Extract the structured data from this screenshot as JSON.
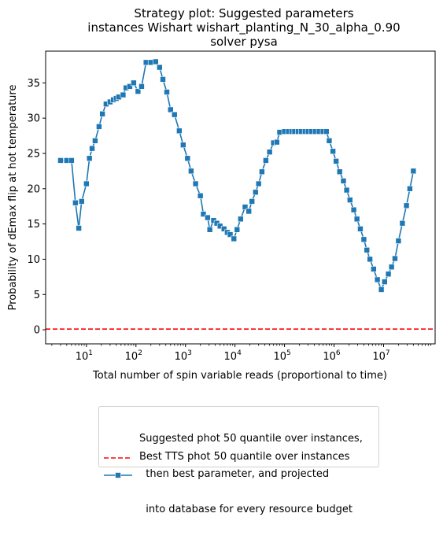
{
  "chart_data": {
    "type": "line",
    "title_lines": [
      "Strategy plot: Suggested parameters",
      "instances Wishart wishart_planting_N_30_alpha_0.90",
      "solver pysa"
    ],
    "xlabel": "Total number of spin variable reads (proportional to time)",
    "ylabel": "Probability of dEmax flip at hot temperature",
    "x_scale": "log",
    "xlim": [
      1.5,
      110000000
    ],
    "ylim": [
      -2,
      39.5
    ],
    "x_ticks": [
      {
        "value": 10,
        "base": "10",
        "exp": "1"
      },
      {
        "value": 100,
        "base": "10",
        "exp": "2"
      },
      {
        "value": 1000,
        "base": "10",
        "exp": "3"
      },
      {
        "value": 10000,
        "base": "10",
        "exp": "4"
      },
      {
        "value": 100000,
        "base": "10",
        "exp": "5"
      },
      {
        "value": 1000000,
        "base": "10",
        "exp": "6"
      },
      {
        "value": 10000000,
        "base": "10",
        "exp": "7"
      }
    ],
    "y_ticks": [
      0,
      5,
      10,
      15,
      20,
      25,
      30,
      35
    ],
    "grid": false,
    "legend_position": "bottom-center",
    "series": [
      {
        "name": "Suggested phot 50 quantile over instances,\n  then best parameter, and projected\n  into database for every resource budget",
        "color": "#1f77b4",
        "marker": "square",
        "points": [
          [
            3,
            24
          ],
          [
            4,
            24
          ],
          [
            5,
            24
          ],
          [
            6,
            18
          ],
          [
            7,
            14.4
          ],
          [
            8,
            18.2
          ],
          [
            10,
            20.7
          ],
          [
            11.5,
            24.3
          ],
          [
            13,
            25.7
          ],
          [
            15,
            26.8
          ],
          [
            18,
            28.8
          ],
          [
            21,
            30.6
          ],
          [
            25,
            32
          ],
          [
            30,
            32.3
          ],
          [
            35,
            32.6
          ],
          [
            40,
            32.8
          ],
          [
            45,
            33
          ],
          [
            55,
            33.3
          ],
          [
            63,
            34.3
          ],
          [
            75,
            34.5
          ],
          [
            90,
            35
          ],
          [
            110,
            33.8
          ],
          [
            130,
            34.5
          ],
          [
            160,
            37.9
          ],
          [
            200,
            37.9
          ],
          [
            250,
            38
          ],
          [
            300,
            37.2
          ],
          [
            350,
            35.5
          ],
          [
            420,
            33.7
          ],
          [
            500,
            31.2
          ],
          [
            600,
            30.5
          ],
          [
            750,
            28.2
          ],
          [
            900,
            26.2
          ],
          [
            1100,
            24.3
          ],
          [
            1300,
            22.5
          ],
          [
            1600,
            20.7
          ],
          [
            2000,
            19
          ],
          [
            2300,
            16.4
          ],
          [
            2800,
            15.9
          ],
          [
            3100,
            14.2
          ],
          [
            3700,
            15.5
          ],
          [
            4300,
            15.1
          ],
          [
            5000,
            14.7
          ],
          [
            6000,
            14.3
          ],
          [
            7000,
            13.8
          ],
          [
            8000,
            13.5
          ],
          [
            9500,
            12.9
          ],
          [
            11000,
            14.2
          ],
          [
            13000,
            15.7
          ],
          [
            16000,
            17.4
          ],
          [
            19000,
            16.8
          ],
          [
            22000,
            18.2
          ],
          [
            26000,
            19.5
          ],
          [
            30000,
            20.7
          ],
          [
            35000,
            22.4
          ],
          [
            42000,
            24
          ],
          [
            50000,
            25.2
          ],
          [
            60000,
            26.5
          ],
          [
            70000,
            26.6
          ],
          [
            80000,
            28
          ],
          [
            100000,
            28.1
          ],
          [
            120000,
            28.1
          ],
          [
            140000,
            28.1
          ],
          [
            160000,
            28.1
          ],
          [
            190000,
            28.1
          ],
          [
            220000,
            28.1
          ],
          [
            260000,
            28.1
          ],
          [
            300000,
            28.1
          ],
          [
            350000,
            28.1
          ],
          [
            420000,
            28.1
          ],
          [
            500000,
            28.1
          ],
          [
            600000,
            28.1
          ],
          [
            700000,
            28.1
          ],
          [
            800000,
            26.8
          ],
          [
            950000,
            25.3
          ],
          [
            1100000,
            23.9
          ],
          [
            1300000,
            22.4
          ],
          [
            1550000,
            21.1
          ],
          [
            1800000,
            19.8
          ],
          [
            2100000,
            18.4
          ],
          [
            2500000,
            17
          ],
          [
            2900000,
            15.7
          ],
          [
            3400000,
            14.3
          ],
          [
            4000000,
            12.8
          ],
          [
            4600000,
            11.3
          ],
          [
            5300000,
            10
          ],
          [
            6300000,
            8.6
          ],
          [
            7500000,
            7.1
          ],
          [
            9000000,
            5.7
          ],
          [
            10500000,
            6.8
          ],
          [
            12500000,
            7.9
          ],
          [
            14500000,
            8.9
          ],
          [
            17000000,
            10.1
          ],
          [
            20000000,
            12.6
          ],
          [
            24000000,
            15.1
          ],
          [
            29000000,
            17.6
          ],
          [
            34000000,
            20
          ],
          [
            40000000,
            22.5
          ]
        ]
      },
      {
        "name": "Best TTS phot 50 quantile over instances",
        "color": "#ff0000",
        "line_style": "dashed",
        "hline": 0.1
      }
    ]
  },
  "legend": {
    "entry_1_lines": [
      "Suggested phot 50 quantile over instances,",
      "  then best parameter, and projected",
      "  into database for every resource budget"
    ],
    "entry_2": "Best TTS phot 50 quantile over instances"
  }
}
